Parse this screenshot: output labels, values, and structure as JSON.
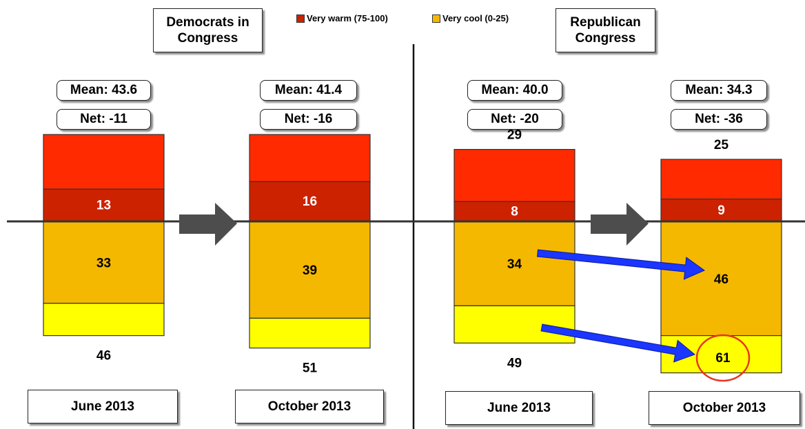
{
  "legend": {
    "very_warm": {
      "label": "Very warm (75-100)",
      "color": "#cc2200"
    },
    "very_cool": {
      "label": "Very cool (0-25)",
      "color": "#f5b800"
    }
  },
  "panels": {
    "democrats": {
      "title_line1": "Democrats in",
      "title_line2": "Congress"
    },
    "republicans": {
      "title_line1": "Republican",
      "title_line2": "Congress"
    }
  },
  "colors": {
    "warm_outer": "#ff2a00",
    "very_warm": "#cc2200",
    "very_cool": "#f5b800",
    "cool_outer": "#ffff00",
    "arrow_gray": "#4d4d4d",
    "arrow_blue": "#1a36ff",
    "highlight_circle": "#e8341c"
  },
  "chart_data": [
    {
      "type": "bar",
      "subject": "Democrats in Congress",
      "period": "June 2013",
      "mean_label": "Mean: 43.6",
      "net_label": "Net: -11",
      "warm_total": 35,
      "very_warm": 13,
      "cool_total": 46,
      "very_cool": 33
    },
    {
      "type": "bar",
      "subject": "Democrats in Congress",
      "period": "October 2013",
      "mean_label": "Mean: 41.4",
      "net_label": "Net: -16",
      "warm_total": 35,
      "very_warm": 16,
      "cool_total": 51,
      "very_cool": 39
    },
    {
      "type": "bar",
      "subject": "Republican Congress",
      "period": "June 2013",
      "mean_label": "Mean: 40.0",
      "net_label": "Net: -20",
      "warm_total": 29,
      "very_warm": 8,
      "cool_total": 49,
      "very_cool": 34
    },
    {
      "type": "bar",
      "subject": "Republican Congress",
      "period": "October 2013",
      "mean_label": "Mean: 34.3",
      "net_label": "Net: -36",
      "warm_total": 25,
      "very_warm": 9,
      "cool_total": 61,
      "very_cool": 46
    }
  ]
}
